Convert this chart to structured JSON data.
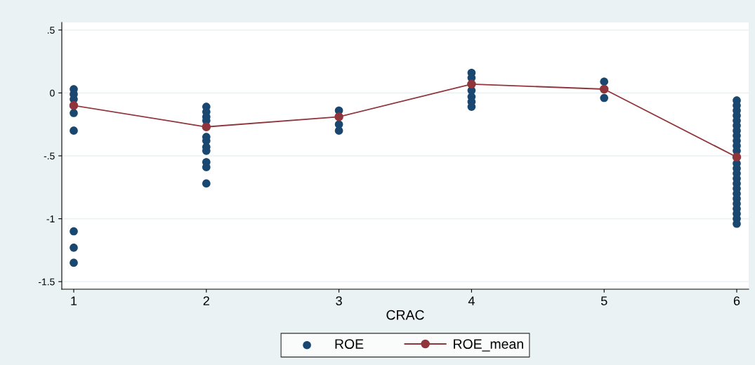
{
  "chart_data": {
    "type": "scatter",
    "xlabel": "CRAC",
    "xlim": [
      0.91,
      6.09
    ],
    "xticks": [
      1,
      2,
      3,
      4,
      5,
      6
    ],
    "ylim": [
      -1.56,
      0.56
    ],
    "yticks": [
      {
        "value": 0.5,
        "label": ".5"
      },
      0,
      {
        "value": -0.5,
        "label": "-.5"
      },
      {
        "value": -1,
        "label": "-1"
      },
      {
        "value": -1.5,
        "label": "-1.5"
      }
    ],
    "grid": "y",
    "legend": "bottom",
    "series": [
      {
        "name": "ROE",
        "color": "#1a476f",
        "marker": "circle",
        "x": [
          1,
          1,
          1,
          1,
          1,
          1,
          1,
          1,
          2,
          2,
          2,
          2,
          2,
          2,
          2,
          2,
          2,
          2,
          2,
          3,
          3,
          3,
          4,
          4,
          4,
          4,
          4,
          4,
          5,
          5,
          6,
          6,
          6,
          6,
          6,
          6,
          6,
          6,
          6,
          6,
          6,
          6,
          6,
          6,
          6,
          6,
          6,
          6,
          6,
          6,
          6,
          6,
          6,
          6
        ],
        "values": [
          0.03,
          -0.01,
          -0.05,
          -0.16,
          -0.3,
          -1.1,
          -1.23,
          -1.35,
          -0.11,
          -0.15,
          -0.19,
          -0.22,
          -0.35,
          -0.38,
          -0.43,
          -0.46,
          -0.55,
          -0.59,
          -0.72,
          -0.14,
          -0.25,
          -0.3,
          0.16,
          0.12,
          0.02,
          -0.03,
          -0.07,
          -0.11,
          0.09,
          -0.04,
          -0.06,
          -0.1,
          -0.14,
          -0.18,
          -0.22,
          -0.26,
          -0.3,
          -0.34,
          -0.38,
          -0.42,
          -0.46,
          -0.56,
          -0.6,
          -0.64,
          -0.68,
          -0.72,
          -0.76,
          -0.8,
          -0.84,
          -0.88,
          -0.92,
          -0.96,
          -1.0,
          -1.04
        ]
      },
      {
        "name": "ROE_mean",
        "type": "line",
        "color": "#90353b",
        "marker": "circle",
        "line_style": "solid",
        "x": [
          1,
          2,
          3,
          4,
          5,
          6
        ],
        "values": [
          -0.1,
          -0.27,
          -0.19,
          0.07,
          0.03,
          -0.51
        ]
      }
    ]
  }
}
